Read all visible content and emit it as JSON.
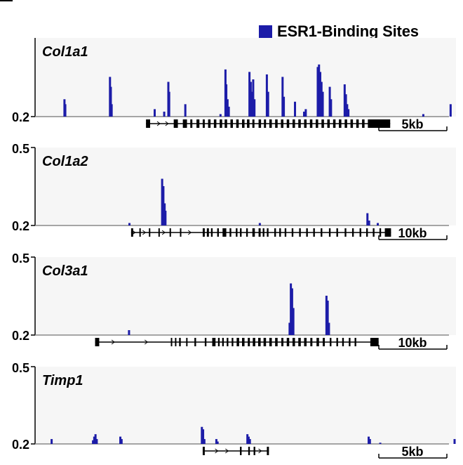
{
  "legend": {
    "label": "ESR1-Binding Sites",
    "color": "#1c1ca8"
  },
  "colors": {
    "track_bg": "#f6f6f6",
    "baseline": "#888888",
    "gene": "#000000",
    "peak": "#1c1ca8"
  },
  "chart_data": [
    {
      "type": "bar",
      "gene": "Col1a1",
      "ylabel_top": "",
      "ylabel_bottom": "0.2",
      "ylim": [
        0.2,
        0.5
      ],
      "scale_label": "5kb",
      "peaks": [
        {
          "x": 0.071,
          "y": 0.27
        },
        {
          "x": 0.073,
          "y": 0.25
        },
        {
          "x": 0.181,
          "y": 0.36
        },
        {
          "x": 0.183,
          "y": 0.32
        },
        {
          "x": 0.185,
          "y": 0.25
        },
        {
          "x": 0.289,
          "y": 0.23
        },
        {
          "x": 0.312,
          "y": 0.22
        },
        {
          "x": 0.322,
          "y": 0.34
        },
        {
          "x": 0.324,
          "y": 0.3
        },
        {
          "x": 0.363,
          "y": 0.25
        },
        {
          "x": 0.448,
          "y": 0.21
        },
        {
          "x": 0.46,
          "y": 0.39
        },
        {
          "x": 0.462,
          "y": 0.33
        },
        {
          "x": 0.465,
          "y": 0.27
        },
        {
          "x": 0.468,
          "y": 0.24
        },
        {
          "x": 0.518,
          "y": 0.38
        },
        {
          "x": 0.521,
          "y": 0.34
        },
        {
          "x": 0.524,
          "y": 0.3
        },
        {
          "x": 0.527,
          "y": 0.35
        },
        {
          "x": 0.53,
          "y": 0.27
        },
        {
          "x": 0.56,
          "y": 0.37
        },
        {
          "x": 0.563,
          "y": 0.3
        },
        {
          "x": 0.598,
          "y": 0.36
        },
        {
          "x": 0.601,
          "y": 0.28
        },
        {
          "x": 0.628,
          "y": 0.26
        },
        {
          "x": 0.65,
          "y": 0.22
        },
        {
          "x": 0.654,
          "y": 0.23
        },
        {
          "x": 0.683,
          "y": 0.4
        },
        {
          "x": 0.686,
          "y": 0.41
        },
        {
          "x": 0.689,
          "y": 0.38
        },
        {
          "x": 0.692,
          "y": 0.34
        },
        {
          "x": 0.695,
          "y": 0.3
        },
        {
          "x": 0.712,
          "y": 0.32
        },
        {
          "x": 0.715,
          "y": 0.27
        },
        {
          "x": 0.748,
          "y": 0.33
        },
        {
          "x": 0.751,
          "y": 0.29
        },
        {
          "x": 0.754,
          "y": 0.25
        },
        {
          "x": 0.757,
          "y": 0.23
        },
        {
          "x": 0.938,
          "y": 0.21
        },
        {
          "x": 1.004,
          "y": 0.25
        }
      ],
      "gene_model": {
        "start": 0.268,
        "end": 0.858,
        "exons": [
          [
            0.268,
            0.278
          ],
          [
            0.335,
            0.345
          ],
          [
            0.357,
            0.367
          ],
          [
            0.375,
            0.38
          ],
          [
            0.39,
            0.397
          ],
          [
            0.405,
            0.41
          ],
          [
            0.418,
            0.424
          ],
          [
            0.432,
            0.438
          ],
          [
            0.446,
            0.452
          ],
          [
            0.458,
            0.464
          ],
          [
            0.472,
            0.478
          ],
          [
            0.486,
            0.492
          ],
          [
            0.5,
            0.506
          ],
          [
            0.512,
            0.518
          ],
          [
            0.525,
            0.53
          ],
          [
            0.54,
            0.546
          ],
          [
            0.553,
            0.558
          ],
          [
            0.566,
            0.572
          ],
          [
            0.58,
            0.586
          ],
          [
            0.594,
            0.6
          ],
          [
            0.608,
            0.614
          ],
          [
            0.622,
            0.628
          ],
          [
            0.636,
            0.642
          ],
          [
            0.65,
            0.656
          ],
          [
            0.664,
            0.67
          ],
          [
            0.678,
            0.684
          ],
          [
            0.692,
            0.698
          ],
          [
            0.706,
            0.712
          ],
          [
            0.72,
            0.726
          ],
          [
            0.734,
            0.74
          ],
          [
            0.748,
            0.754
          ],
          [
            0.762,
            0.768
          ],
          [
            0.776,
            0.782
          ],
          [
            0.79,
            0.796
          ],
          [
            0.804,
            0.858
          ]
        ],
        "arrows": [
          0.3,
          0.32
        ]
      }
    },
    {
      "type": "bar",
      "gene": "Col1a2",
      "ylabel_top": "0.5",
      "ylabel_bottom": "0.2",
      "ylim": [
        0.2,
        0.5
      ],
      "scale_label": "10kb",
      "peaks": [
        {
          "x": 0.228,
          "y": 0.21
        },
        {
          "x": 0.307,
          "y": 0.39
        },
        {
          "x": 0.31,
          "y": 0.36
        },
        {
          "x": 0.313,
          "y": 0.29
        },
        {
          "x": 0.315,
          "y": 0.26
        },
        {
          "x": 0.543,
          "y": 0.21
        },
        {
          "x": 0.803,
          "y": 0.25
        },
        {
          "x": 0.807,
          "y": 0.22
        },
        {
          "x": 0.828,
          "y": 0.21
        }
      ],
      "gene_model": {
        "start": 0.232,
        "end": 0.86,
        "exons": [
          [
            0.232,
            0.237
          ],
          [
            0.252,
            0.255
          ],
          [
            0.275,
            0.278
          ],
          [
            0.298,
            0.301
          ],
          [
            0.325,
            0.328
          ],
          [
            0.35,
            0.353
          ],
          [
            0.405,
            0.41
          ],
          [
            0.415,
            0.42
          ],
          [
            0.425,
            0.429
          ],
          [
            0.44,
            0.444
          ],
          [
            0.453,
            0.462
          ],
          [
            0.47,
            0.474
          ],
          [
            0.485,
            0.489
          ],
          [
            0.495,
            0.499
          ],
          [
            0.51,
            0.514
          ],
          [
            0.525,
            0.531
          ],
          [
            0.54,
            0.545
          ],
          [
            0.55,
            0.554
          ],
          [
            0.56,
            0.564
          ],
          [
            0.578,
            0.582
          ],
          [
            0.59,
            0.594
          ],
          [
            0.603,
            0.607
          ],
          [
            0.62,
            0.624
          ],
          [
            0.638,
            0.642
          ],
          [
            0.655,
            0.659
          ],
          [
            0.672,
            0.676
          ],
          [
            0.69,
            0.694
          ],
          [
            0.71,
            0.714
          ],
          [
            0.728,
            0.732
          ],
          [
            0.748,
            0.752
          ],
          [
            0.766,
            0.77
          ],
          [
            0.784,
            0.788
          ],
          [
            0.8,
            0.804
          ],
          [
            0.816,
            0.82
          ],
          [
            0.832,
            0.836
          ],
          [
            0.845,
            0.86
          ]
        ],
        "arrows": [
          0.24,
          0.265,
          0.312,
          0.375
        ]
      }
    },
    {
      "type": "bar",
      "gene": "Col3a1",
      "ylabel_top": "0.5",
      "ylabel_bottom": "0.2",
      "ylim": [
        0.2,
        0.5
      ],
      "scale_label": "10kb",
      "peaks": [
        {
          "x": 0.227,
          "y": 0.22
        },
        {
          "x": 0.615,
          "y": 0.25
        },
        {
          "x": 0.618,
          "y": 0.41
        },
        {
          "x": 0.621,
          "y": 0.39
        },
        {
          "x": 0.624,
          "y": 0.31
        },
        {
          "x": 0.704,
          "y": 0.36
        },
        {
          "x": 0.707,
          "y": 0.34
        },
        {
          "x": 0.71,
          "y": 0.25
        }
      ],
      "gene_model": {
        "start": 0.145,
        "end": 0.83,
        "exons": [
          [
            0.145,
            0.155
          ],
          [
            0.328,
            0.331
          ],
          [
            0.338,
            0.341
          ],
          [
            0.348,
            0.352
          ],
          [
            0.365,
            0.368
          ],
          [
            0.385,
            0.389
          ],
          [
            0.41,
            0.414
          ],
          [
            0.428,
            0.436
          ],
          [
            0.442,
            0.446
          ],
          [
            0.452,
            0.456
          ],
          [
            0.463,
            0.467
          ],
          [
            0.475,
            0.479
          ],
          [
            0.487,
            0.493
          ],
          [
            0.5,
            0.506
          ],
          [
            0.514,
            0.519
          ],
          [
            0.526,
            0.532
          ],
          [
            0.539,
            0.545
          ],
          [
            0.552,
            0.558
          ],
          [
            0.566,
            0.572
          ],
          [
            0.58,
            0.586
          ],
          [
            0.595,
            0.6
          ],
          [
            0.608,
            0.614
          ],
          [
            0.622,
            0.628
          ],
          [
            0.636,
            0.642
          ],
          [
            0.65,
            0.656
          ],
          [
            0.665,
            0.67
          ],
          [
            0.68,
            0.686
          ],
          [
            0.695,
            0.7
          ],
          [
            0.712,
            0.716
          ],
          [
            0.728,
            0.732
          ],
          [
            0.742,
            0.746
          ],
          [
            0.758,
            0.762
          ],
          [
            0.772,
            0.776
          ],
          [
            0.81,
            0.83
          ]
        ],
        "arrows": [
          0.19,
          0.27
        ]
      }
    },
    {
      "type": "bar",
      "gene": "Timp1",
      "ylabel_top": "0.5",
      "ylabel_bottom": "0.2",
      "ylim": [
        0.2,
        0.5
      ],
      "scale_label": "5kb",
      "peaks": [
        {
          "x": 0.04,
          "y": 0.22
        },
        {
          "x": 0.14,
          "y": 0.215
        },
        {
          "x": 0.143,
          "y": 0.23
        },
        {
          "x": 0.146,
          "y": 0.24
        },
        {
          "x": 0.149,
          "y": 0.22
        },
        {
          "x": 0.206,
          "y": 0.23
        },
        {
          "x": 0.209,
          "y": 0.22
        },
        {
          "x": 0.403,
          "y": 0.27
        },
        {
          "x": 0.406,
          "y": 0.26
        },
        {
          "x": 0.409,
          "y": 0.22
        },
        {
          "x": 0.438,
          "y": 0.22
        },
        {
          "x": 0.441,
          "y": 0.21
        },
        {
          "x": 0.513,
          "y": 0.24
        },
        {
          "x": 0.516,
          "y": 0.23
        },
        {
          "x": 0.519,
          "y": 0.22
        },
        {
          "x": 0.806,
          "y": 0.23
        },
        {
          "x": 0.809,
          "y": 0.22
        },
        {
          "x": 0.834,
          "y": 0.205
        },
        {
          "x": 1.015,
          "y": 0.22
        }
      ],
      "gene_model": {
        "start": 0.405,
        "end": 0.565,
        "exons": [
          [
            0.405,
            0.41
          ],
          [
            0.495,
            0.499
          ],
          [
            0.515,
            0.519
          ],
          [
            0.528,
            0.532
          ],
          [
            0.56,
            0.565
          ]
        ],
        "arrows": [
          0.44,
          0.465,
          0.545
        ]
      }
    }
  ]
}
